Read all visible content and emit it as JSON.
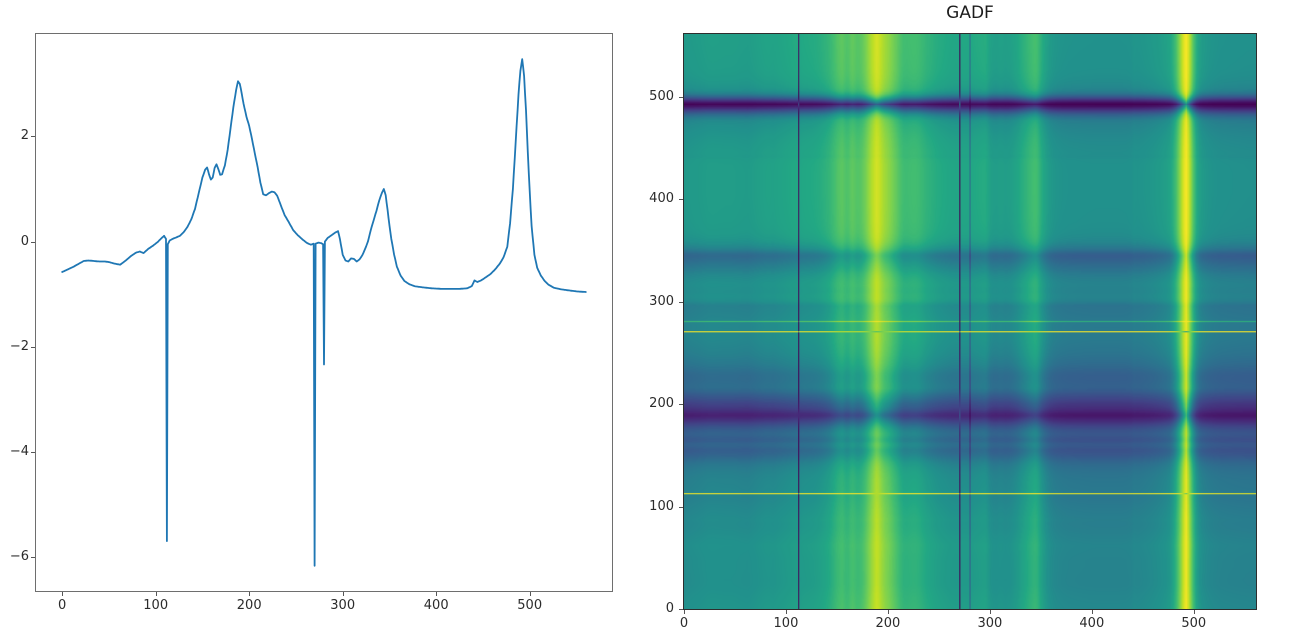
{
  "figure": {
    "background": "#ffffff",
    "text_color": "#2b2b2b",
    "accent_line_color": "#1f77b4"
  },
  "chart_data": [
    {
      "id": "time-series",
      "type": "line",
      "title": "",
      "xlabel": "",
      "ylabel": "",
      "legend": null,
      "grid": false,
      "line_color": "#1f77b4",
      "xlim": [
        -28,
        588
      ],
      "ylim": [
        -6.65,
        3.95
      ],
      "xtick_values": [
        0,
        100,
        200,
        300,
        400,
        500
      ],
      "xtick_labels": [
        "0",
        "100",
        "200",
        "300",
        "400",
        "500"
      ],
      "ytick_values": [
        2,
        0,
        -2,
        -4,
        -6
      ],
      "ytick_labels": [
        "2",
        "0",
        "−2",
        "−4",
        "−6"
      ],
      "n_points": 561,
      "interpolation": "linear between keypoints, x = 0..560",
      "keypoints": [
        [
          0,
          -0.58
        ],
        [
          6,
          -0.53
        ],
        [
          12,
          -0.48
        ],
        [
          18,
          -0.42
        ],
        [
          23,
          -0.37
        ],
        [
          28,
          -0.36
        ],
        [
          34,
          -0.37
        ],
        [
          40,
          -0.38
        ],
        [
          46,
          -0.38
        ],
        [
          50,
          -0.39
        ],
        [
          56,
          -0.42
        ],
        [
          62,
          -0.44
        ],
        [
          68,
          -0.36
        ],
        [
          74,
          -0.27
        ],
        [
          79,
          -0.21
        ],
        [
          83,
          -0.19
        ],
        [
          87,
          -0.22
        ],
        [
          92,
          -0.14
        ],
        [
          97,
          -0.08
        ],
        [
          102,
          -0.01
        ],
        [
          106,
          0.06
        ],
        [
          109,
          0.11
        ],
        [
          111,
          0.05
        ],
        [
          112,
          -5.7
        ],
        [
          113,
          -0.05
        ],
        [
          115,
          0.02
        ],
        [
          118,
          0.05
        ],
        [
          122,
          0.08
        ],
        [
          126,
          0.11
        ],
        [
          130,
          0.18
        ],
        [
          134,
          0.28
        ],
        [
          138,
          0.42
        ],
        [
          142,
          0.62
        ],
        [
          146,
          0.92
        ],
        [
          150,
          1.22
        ],
        [
          153,
          1.37
        ],
        [
          155,
          1.41
        ],
        [
          157,
          1.28
        ],
        [
          159,
          1.18
        ],
        [
          161,
          1.22
        ],
        [
          163,
          1.4
        ],
        [
          165,
          1.47
        ],
        [
          167,
          1.38
        ],
        [
          169,
          1.27
        ],
        [
          171,
          1.28
        ],
        [
          174,
          1.45
        ],
        [
          177,
          1.75
        ],
        [
          180,
          2.15
        ],
        [
          183,
          2.55
        ],
        [
          186,
          2.88
        ],
        [
          188,
          3.05
        ],
        [
          190,
          3.0
        ],
        [
          192,
          2.82
        ],
        [
          194,
          2.62
        ],
        [
          197,
          2.38
        ],
        [
          200,
          2.2
        ],
        [
          203,
          1.95
        ],
        [
          206,
          1.68
        ],
        [
          209,
          1.42
        ],
        [
          212,
          1.12
        ],
        [
          215,
          0.9
        ],
        [
          218,
          0.88
        ],
        [
          221,
          0.92
        ],
        [
          224,
          0.95
        ],
        [
          227,
          0.94
        ],
        [
          230,
          0.87
        ],
        [
          234,
          0.68
        ],
        [
          238,
          0.5
        ],
        [
          242,
          0.38
        ],
        [
          247,
          0.22
        ],
        [
          252,
          0.12
        ],
        [
          257,
          0.04
        ],
        [
          262,
          -0.03
        ],
        [
          266,
          -0.06
        ],
        [
          269,
          -0.04
        ],
        [
          270,
          -6.17
        ],
        [
          271,
          -0.04
        ],
        [
          274,
          -0.02
        ],
        [
          277,
          -0.03
        ],
        [
          279,
          -0.05
        ],
        [
          280,
          -2.34
        ],
        [
          281,
          0.0
        ],
        [
          284,
          0.07
        ],
        [
          288,
          0.12
        ],
        [
          292,
          0.17
        ],
        [
          295,
          0.2
        ],
        [
          297,
          0.05
        ],
        [
          300,
          -0.25
        ],
        [
          303,
          -0.36
        ],
        [
          306,
          -0.38
        ],
        [
          309,
          -0.32
        ],
        [
          312,
          -0.33
        ],
        [
          315,
          -0.38
        ],
        [
          318,
          -0.34
        ],
        [
          321,
          -0.26
        ],
        [
          324,
          -0.14
        ],
        [
          327,
          0.0
        ],
        [
          330,
          0.22
        ],
        [
          333,
          0.4
        ],
        [
          336,
          0.58
        ],
        [
          339,
          0.78
        ],
        [
          342,
          0.93
        ],
        [
          344,
          1.0
        ],
        [
          346,
          0.88
        ],
        [
          348,
          0.6
        ],
        [
          350,
          0.3
        ],
        [
          352,
          0.05
        ],
        [
          355,
          -0.25
        ],
        [
          358,
          -0.48
        ],
        [
          362,
          -0.65
        ],
        [
          366,
          -0.75
        ],
        [
          371,
          -0.81
        ],
        [
          377,
          -0.85
        ],
        [
          385,
          -0.87
        ],
        [
          395,
          -0.89
        ],
        [
          405,
          -0.9
        ],
        [
          415,
          -0.9
        ],
        [
          425,
          -0.9
        ],
        [
          433,
          -0.89
        ],
        [
          438,
          -0.85
        ],
        [
          441,
          -0.74
        ],
        [
          444,
          -0.77
        ],
        [
          448,
          -0.74
        ],
        [
          453,
          -0.68
        ],
        [
          458,
          -0.62
        ],
        [
          463,
          -0.53
        ],
        [
          468,
          -0.42
        ],
        [
          472,
          -0.3
        ],
        [
          476,
          -0.1
        ],
        [
          479,
          0.35
        ],
        [
          482,
          1.0
        ],
        [
          485,
          1.9
        ],
        [
          488,
          2.8
        ],
        [
          490,
          3.25
        ],
        [
          492,
          3.47
        ],
        [
          494,
          3.15
        ],
        [
          496,
          2.5
        ],
        [
          499,
          1.3
        ],
        [
          502,
          0.3
        ],
        [
          505,
          -0.25
        ],
        [
          508,
          -0.5
        ],
        [
          512,
          -0.65
        ],
        [
          516,
          -0.75
        ],
        [
          520,
          -0.82
        ],
        [
          526,
          -0.88
        ],
        [
          534,
          -0.91
        ],
        [
          542,
          -0.93
        ],
        [
          551,
          -0.95
        ],
        [
          560,
          -0.96
        ]
      ]
    },
    {
      "id": "gadf-heatmap",
      "type": "heatmap",
      "title": "GADF",
      "xlabel": "",
      "ylabel": "",
      "colormap": "viridis",
      "value_range": [
        -1,
        1
      ],
      "extent": [
        0,
        561,
        0,
        561
      ],
      "origin": "lower",
      "derivation": "GADF[i][j] = sin(phi_i - phi_j); phi = arccos(series rescaled to [-1,1]); series from chart_data[0]",
      "xtick_values": [
        0,
        100,
        200,
        300,
        400,
        500
      ],
      "xtick_labels": [
        "0",
        "100",
        "200",
        "300",
        "400",
        "500"
      ],
      "ytick_values": [
        0,
        100,
        200,
        300,
        400,
        500
      ],
      "ytick_labels": [
        "0",
        "100",
        "200",
        "300",
        "400",
        "500"
      ]
    }
  ],
  "viridis_stops": [
    [
      0.0,
      68,
      1,
      84
    ],
    [
      0.1,
      72,
      36,
      117
    ],
    [
      0.2,
      65,
      68,
      135
    ],
    [
      0.3,
      53,
      95,
      141
    ],
    [
      0.4,
      42,
      120,
      142
    ],
    [
      0.5,
      33,
      145,
      140
    ],
    [
      0.6,
      34,
      168,
      132
    ],
    [
      0.7,
      68,
      190,
      112
    ],
    [
      0.8,
      122,
      209,
      81
    ],
    [
      0.9,
      189,
      223,
      38
    ],
    [
      1.0,
      253,
      231,
      37
    ]
  ]
}
